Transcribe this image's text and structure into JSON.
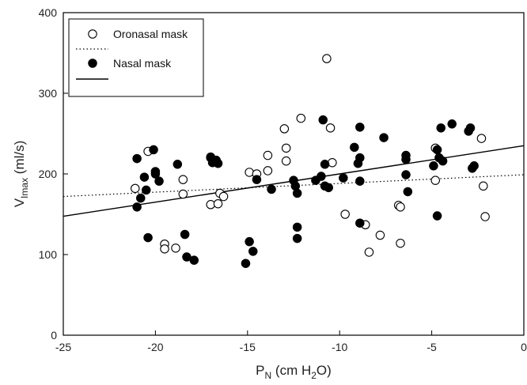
{
  "chart_data": {
    "type": "scatter",
    "xlabel": {
      "main": "P",
      "sub": "N",
      "tail": " (cm H",
      "sub2": "2",
      "tail2": "O)"
    },
    "ylabel": {
      "main": "V",
      "sub": "Imax",
      "tail": " (ml/s)"
    },
    "xlim": [
      -25,
      0
    ],
    "ylim": [
      0,
      400
    ],
    "xticks": [
      -25,
      -20,
      -15,
      -10,
      -5,
      0
    ],
    "yticks": [
      0,
      100,
      200,
      300,
      400
    ],
    "grid": false,
    "legend_position": "top-left",
    "series": [
      {
        "name": "Oronasal mask",
        "marker": "open-circle",
        "line_name": "",
        "fit": {
          "style": "dotted",
          "intercept": 199,
          "slope": 1.08
        },
        "points": [
          [
            -21.1,
            182
          ],
          [
            -20.4,
            228
          ],
          [
            -19.5,
            113
          ],
          [
            -19.5,
            107
          ],
          [
            -18.9,
            108
          ],
          [
            -18.5,
            193
          ],
          [
            -18.5,
            175
          ],
          [
            -17.0,
            162
          ],
          [
            -17.0,
            220
          ],
          [
            -16.6,
            163
          ],
          [
            -16.5,
            176
          ],
          [
            -16.3,
            172
          ],
          [
            -14.9,
            202
          ],
          [
            -14.5,
            200
          ],
          [
            -13.9,
            223
          ],
          [
            -13.9,
            204
          ],
          [
            -13.0,
            256
          ],
          [
            -12.9,
            232
          ],
          [
            -12.9,
            216
          ],
          [
            -12.1,
            269
          ],
          [
            -10.7,
            343
          ],
          [
            -10.5,
            257
          ],
          [
            -10.4,
            214
          ],
          [
            -9.7,
            150
          ],
          [
            -8.6,
            137
          ],
          [
            -8.4,
            103
          ],
          [
            -7.8,
            124
          ],
          [
            -6.8,
            161
          ],
          [
            -6.7,
            159
          ],
          [
            -6.7,
            114
          ],
          [
            -4.8,
            232
          ],
          [
            -4.8,
            192
          ],
          [
            -2.3,
            244
          ],
          [
            -2.2,
            185
          ],
          [
            -2.1,
            147
          ]
        ]
      },
      {
        "name": "Nasal mask",
        "marker": "filled-circle",
        "line_name": "",
        "fit": {
          "style": "solid",
          "intercept": 235,
          "slope": 3.5
        },
        "points": [
          [
            -21.0,
            219
          ],
          [
            -21.0,
            159
          ],
          [
            -20.8,
            170
          ],
          [
            -20.6,
            196
          ],
          [
            -20.5,
            180
          ],
          [
            -20.4,
            121
          ],
          [
            -20.1,
            230
          ],
          [
            -20.0,
            200
          ],
          [
            -20.0,
            203
          ],
          [
            -19.8,
            191
          ],
          [
            -18.8,
            212
          ],
          [
            -18.4,
            125
          ],
          [
            -18.3,
            97
          ],
          [
            -17.9,
            93
          ],
          [
            -17.0,
            221
          ],
          [
            -16.9,
            214
          ],
          [
            -16.7,
            217
          ],
          [
            -16.6,
            213
          ],
          [
            -14.9,
            116
          ],
          [
            -15.1,
            89
          ],
          [
            -14.7,
            104
          ],
          [
            -14.5,
            193
          ],
          [
            -13.7,
            181
          ],
          [
            -12.5,
            192
          ],
          [
            -12.4,
            185
          ],
          [
            -12.3,
            134
          ],
          [
            -12.3,
            120
          ],
          [
            -12.3,
            176
          ],
          [
            -11.3,
            192
          ],
          [
            -11.0,
            197
          ],
          [
            -10.9,
            267
          ],
          [
            -10.8,
            212
          ],
          [
            -10.8,
            185
          ],
          [
            -10.6,
            183
          ],
          [
            -9.8,
            195
          ],
          [
            -9.2,
            233
          ],
          [
            -9.0,
            213
          ],
          [
            -8.9,
            258
          ],
          [
            -8.9,
            220
          ],
          [
            -8.9,
            191
          ],
          [
            -8.9,
            139
          ],
          [
            -7.6,
            245
          ],
          [
            -6.4,
            223
          ],
          [
            -6.4,
            218
          ],
          [
            -6.4,
            199
          ],
          [
            -6.3,
            178
          ],
          [
            -4.9,
            210
          ],
          [
            -4.7,
            148
          ],
          [
            -4.7,
            230
          ],
          [
            -4.6,
            220
          ],
          [
            -4.5,
            257
          ],
          [
            -4.4,
            216
          ],
          [
            -3.9,
            262
          ],
          [
            -3.0,
            253
          ],
          [
            -2.9,
            257
          ],
          [
            -2.8,
            207
          ],
          [
            -2.7,
            210
          ]
        ]
      }
    ]
  }
}
